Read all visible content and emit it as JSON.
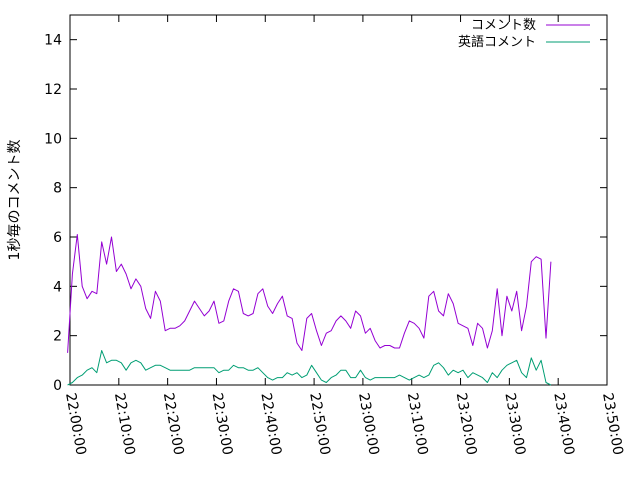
{
  "chart_data": {
    "type": "line",
    "ylabel": "1秒毎のコメント数",
    "xlabel": "",
    "ylim": [
      0,
      15
    ],
    "yticks": [
      0,
      2,
      4,
      6,
      8,
      10,
      12,
      14
    ],
    "xlim": [
      "22:00:00",
      "23:50:00"
    ],
    "xticks": [
      "22:00:00",
      "22:10:00",
      "22:20:00",
      "22:30:00",
      "22:40:00",
      "22:50:00",
      "23:00:00",
      "23:10:00",
      "23:20:00",
      "23:30:00",
      "23:40:00",
      "23:50:00"
    ],
    "grid": false,
    "legend_position": "top-right",
    "series": [
      {
        "name": "コメント数",
        "color": "#9400d3",
        "points": [
          [
            "21:59:30",
            1.3
          ],
          [
            "22:00:30",
            4.5
          ],
          [
            "22:01:30",
            6.1
          ],
          [
            "22:02:30",
            4.0
          ],
          [
            "22:03:30",
            3.5
          ],
          [
            "22:04:30",
            3.8
          ],
          [
            "22:05:30",
            3.7
          ],
          [
            "22:06:30",
            5.8
          ],
          [
            "22:07:30",
            4.9
          ],
          [
            "22:08:30",
            6.0
          ],
          [
            "22:09:30",
            4.6
          ],
          [
            "22:10:30",
            4.9
          ],
          [
            "22:11:30",
            4.5
          ],
          [
            "22:12:30",
            3.9
          ],
          [
            "22:13:30",
            4.3
          ],
          [
            "22:14:30",
            4.0
          ],
          [
            "22:15:30",
            3.1
          ],
          [
            "22:16:30",
            2.7
          ],
          [
            "22:17:30",
            3.8
          ],
          [
            "22:18:30",
            3.4
          ],
          [
            "22:19:30",
            2.2
          ],
          [
            "22:20:30",
            2.3
          ],
          [
            "22:21:30",
            2.3
          ],
          [
            "22:22:30",
            2.4
          ],
          [
            "22:23:30",
            2.6
          ],
          [
            "22:24:30",
            3.0
          ],
          [
            "22:25:30",
            3.4
          ],
          [
            "22:26:30",
            3.1
          ],
          [
            "22:27:30",
            2.8
          ],
          [
            "22:28:30",
            3.0
          ],
          [
            "22:29:30",
            3.4
          ],
          [
            "22:30:30",
            2.5
          ],
          [
            "22:31:30",
            2.6
          ],
          [
            "22:32:30",
            3.4
          ],
          [
            "22:33:30",
            3.9
          ],
          [
            "22:34:30",
            3.8
          ],
          [
            "22:35:30",
            2.9
          ],
          [
            "22:36:30",
            2.8
          ],
          [
            "22:37:30",
            2.9
          ],
          [
            "22:38:30",
            3.7
          ],
          [
            "22:39:30",
            3.9
          ],
          [
            "22:40:30",
            3.2
          ],
          [
            "22:41:30",
            2.9
          ],
          [
            "22:42:30",
            3.3
          ],
          [
            "22:43:30",
            3.6
          ],
          [
            "22:44:30",
            2.8
          ],
          [
            "22:45:30",
            2.7
          ],
          [
            "22:46:30",
            1.7
          ],
          [
            "22:47:30",
            1.4
          ],
          [
            "22:48:30",
            2.7
          ],
          [
            "22:49:30",
            2.9
          ],
          [
            "22:50:30",
            2.2
          ],
          [
            "22:51:30",
            1.6
          ],
          [
            "22:52:30",
            2.1
          ],
          [
            "22:53:30",
            2.2
          ],
          [
            "22:54:30",
            2.6
          ],
          [
            "22:55:30",
            2.8
          ],
          [
            "22:56:30",
            2.6
          ],
          [
            "22:57:30",
            2.3
          ],
          [
            "22:58:30",
            3.0
          ],
          [
            "22:59:30",
            2.8
          ],
          [
            "23:00:30",
            2.1
          ],
          [
            "23:01:30",
            2.3
          ],
          [
            "23:02:30",
            1.8
          ],
          [
            "23:03:30",
            1.5
          ],
          [
            "23:04:30",
            1.6
          ],
          [
            "23:05:30",
            1.6
          ],
          [
            "23:06:30",
            1.5
          ],
          [
            "23:07:30",
            1.5
          ],
          [
            "23:08:30",
            2.1
          ],
          [
            "23:09:30",
            2.6
          ],
          [
            "23:10:30",
            2.5
          ],
          [
            "23:11:30",
            2.3
          ],
          [
            "23:12:30",
            1.9
          ],
          [
            "23:13:30",
            3.6
          ],
          [
            "23:14:30",
            3.8
          ],
          [
            "23:15:30",
            3.0
          ],
          [
            "23:16:30",
            2.8
          ],
          [
            "23:17:30",
            3.7
          ],
          [
            "23:18:30",
            3.3
          ],
          [
            "23:19:30",
            2.5
          ],
          [
            "23:20:30",
            2.4
          ],
          [
            "23:21:30",
            2.3
          ],
          [
            "23:22:30",
            1.6
          ],
          [
            "23:23:30",
            2.5
          ],
          [
            "23:24:30",
            2.3
          ],
          [
            "23:25:30",
            1.5
          ],
          [
            "23:26:30",
            2.2
          ],
          [
            "23:27:30",
            3.9
          ],
          [
            "23:28:30",
            2.0
          ],
          [
            "23:29:30",
            3.6
          ],
          [
            "23:30:30",
            3.0
          ],
          [
            "23:31:30",
            3.8
          ],
          [
            "23:32:30",
            2.2
          ],
          [
            "23:33:30",
            3.2
          ],
          [
            "23:34:30",
            5.0
          ],
          [
            "23:35:30",
            5.2
          ],
          [
            "23:36:30",
            5.1
          ],
          [
            "23:37:30",
            1.9
          ],
          [
            "23:38:30",
            5.0
          ]
        ]
      },
      {
        "name": "英語コメント",
        "color": "#009e73",
        "points": [
          [
            "21:59:30",
            0.0
          ],
          [
            "22:00:30",
            0.1
          ],
          [
            "22:01:30",
            0.3
          ],
          [
            "22:02:30",
            0.4
          ],
          [
            "22:03:30",
            0.6
          ],
          [
            "22:04:30",
            0.7
          ],
          [
            "22:05:30",
            0.5
          ],
          [
            "22:06:30",
            1.4
          ],
          [
            "22:07:30",
            0.9
          ],
          [
            "22:08:30",
            1.0
          ],
          [
            "22:09:30",
            1.0
          ],
          [
            "22:10:30",
            0.9
          ],
          [
            "22:11:30",
            0.6
          ],
          [
            "22:12:30",
            0.9
          ],
          [
            "22:13:30",
            1.0
          ],
          [
            "22:14:30",
            0.9
          ],
          [
            "22:15:30",
            0.6
          ],
          [
            "22:16:30",
            0.7
          ],
          [
            "22:17:30",
            0.8
          ],
          [
            "22:18:30",
            0.8
          ],
          [
            "22:19:30",
            0.7
          ],
          [
            "22:20:30",
            0.6
          ],
          [
            "22:21:30",
            0.6
          ],
          [
            "22:22:30",
            0.6
          ],
          [
            "22:23:30",
            0.6
          ],
          [
            "22:24:30",
            0.6
          ],
          [
            "22:25:30",
            0.7
          ],
          [
            "22:26:30",
            0.7
          ],
          [
            "22:27:30",
            0.7
          ],
          [
            "22:28:30",
            0.7
          ],
          [
            "22:29:30",
            0.7
          ],
          [
            "22:30:30",
            0.5
          ],
          [
            "22:31:30",
            0.6
          ],
          [
            "22:32:30",
            0.6
          ],
          [
            "22:33:30",
            0.8
          ],
          [
            "22:34:30",
            0.7
          ],
          [
            "22:35:30",
            0.7
          ],
          [
            "22:36:30",
            0.6
          ],
          [
            "22:37:30",
            0.6
          ],
          [
            "22:38:30",
            0.7
          ],
          [
            "22:39:30",
            0.5
          ],
          [
            "22:40:30",
            0.3
          ],
          [
            "22:41:30",
            0.2
          ],
          [
            "22:42:30",
            0.3
          ],
          [
            "22:43:30",
            0.3
          ],
          [
            "22:44:30",
            0.5
          ],
          [
            "22:45:30",
            0.4
          ],
          [
            "22:46:30",
            0.5
          ],
          [
            "22:47:30",
            0.3
          ],
          [
            "22:48:30",
            0.4
          ],
          [
            "22:49:30",
            0.8
          ],
          [
            "22:50:30",
            0.5
          ],
          [
            "22:51:30",
            0.2
          ],
          [
            "22:52:30",
            0.1
          ],
          [
            "22:53:30",
            0.3
          ],
          [
            "22:54:30",
            0.4
          ],
          [
            "22:55:30",
            0.6
          ],
          [
            "22:56:30",
            0.6
          ],
          [
            "22:57:30",
            0.3
          ],
          [
            "22:58:30",
            0.3
          ],
          [
            "22:59:30",
            0.6
          ],
          [
            "23:00:30",
            0.3
          ],
          [
            "23:01:30",
            0.2
          ],
          [
            "23:02:30",
            0.3
          ],
          [
            "23:03:30",
            0.3
          ],
          [
            "23:04:30",
            0.3
          ],
          [
            "23:05:30",
            0.3
          ],
          [
            "23:06:30",
            0.3
          ],
          [
            "23:07:30",
            0.4
          ],
          [
            "23:08:30",
            0.3
          ],
          [
            "23:09:30",
            0.2
          ],
          [
            "23:10:30",
            0.3
          ],
          [
            "23:11:30",
            0.4
          ],
          [
            "23:12:30",
            0.3
          ],
          [
            "23:13:30",
            0.4
          ],
          [
            "23:14:30",
            0.8
          ],
          [
            "23:15:30",
            0.9
          ],
          [
            "23:16:30",
            0.7
          ],
          [
            "23:17:30",
            0.4
          ],
          [
            "23:18:30",
            0.6
          ],
          [
            "23:19:30",
            0.5
          ],
          [
            "23:20:30",
            0.6
          ],
          [
            "23:21:30",
            0.3
          ],
          [
            "23:22:30",
            0.5
          ],
          [
            "23:23:30",
            0.4
          ],
          [
            "23:24:30",
            0.3
          ],
          [
            "23:25:30",
            0.1
          ],
          [
            "23:26:30",
            0.5
          ],
          [
            "23:27:30",
            0.3
          ],
          [
            "23:28:30",
            0.6
          ],
          [
            "23:29:30",
            0.8
          ],
          [
            "23:30:30",
            0.9
          ],
          [
            "23:31:30",
            1.0
          ],
          [
            "23:32:30",
            0.5
          ],
          [
            "23:33:30",
            0.3
          ],
          [
            "23:34:30",
            1.1
          ],
          [
            "23:35:30",
            0.6
          ],
          [
            "23:36:30",
            1.0
          ],
          [
            "23:37:30",
            0.1
          ],
          [
            "23:38:30",
            0.0
          ]
        ]
      }
    ]
  }
}
